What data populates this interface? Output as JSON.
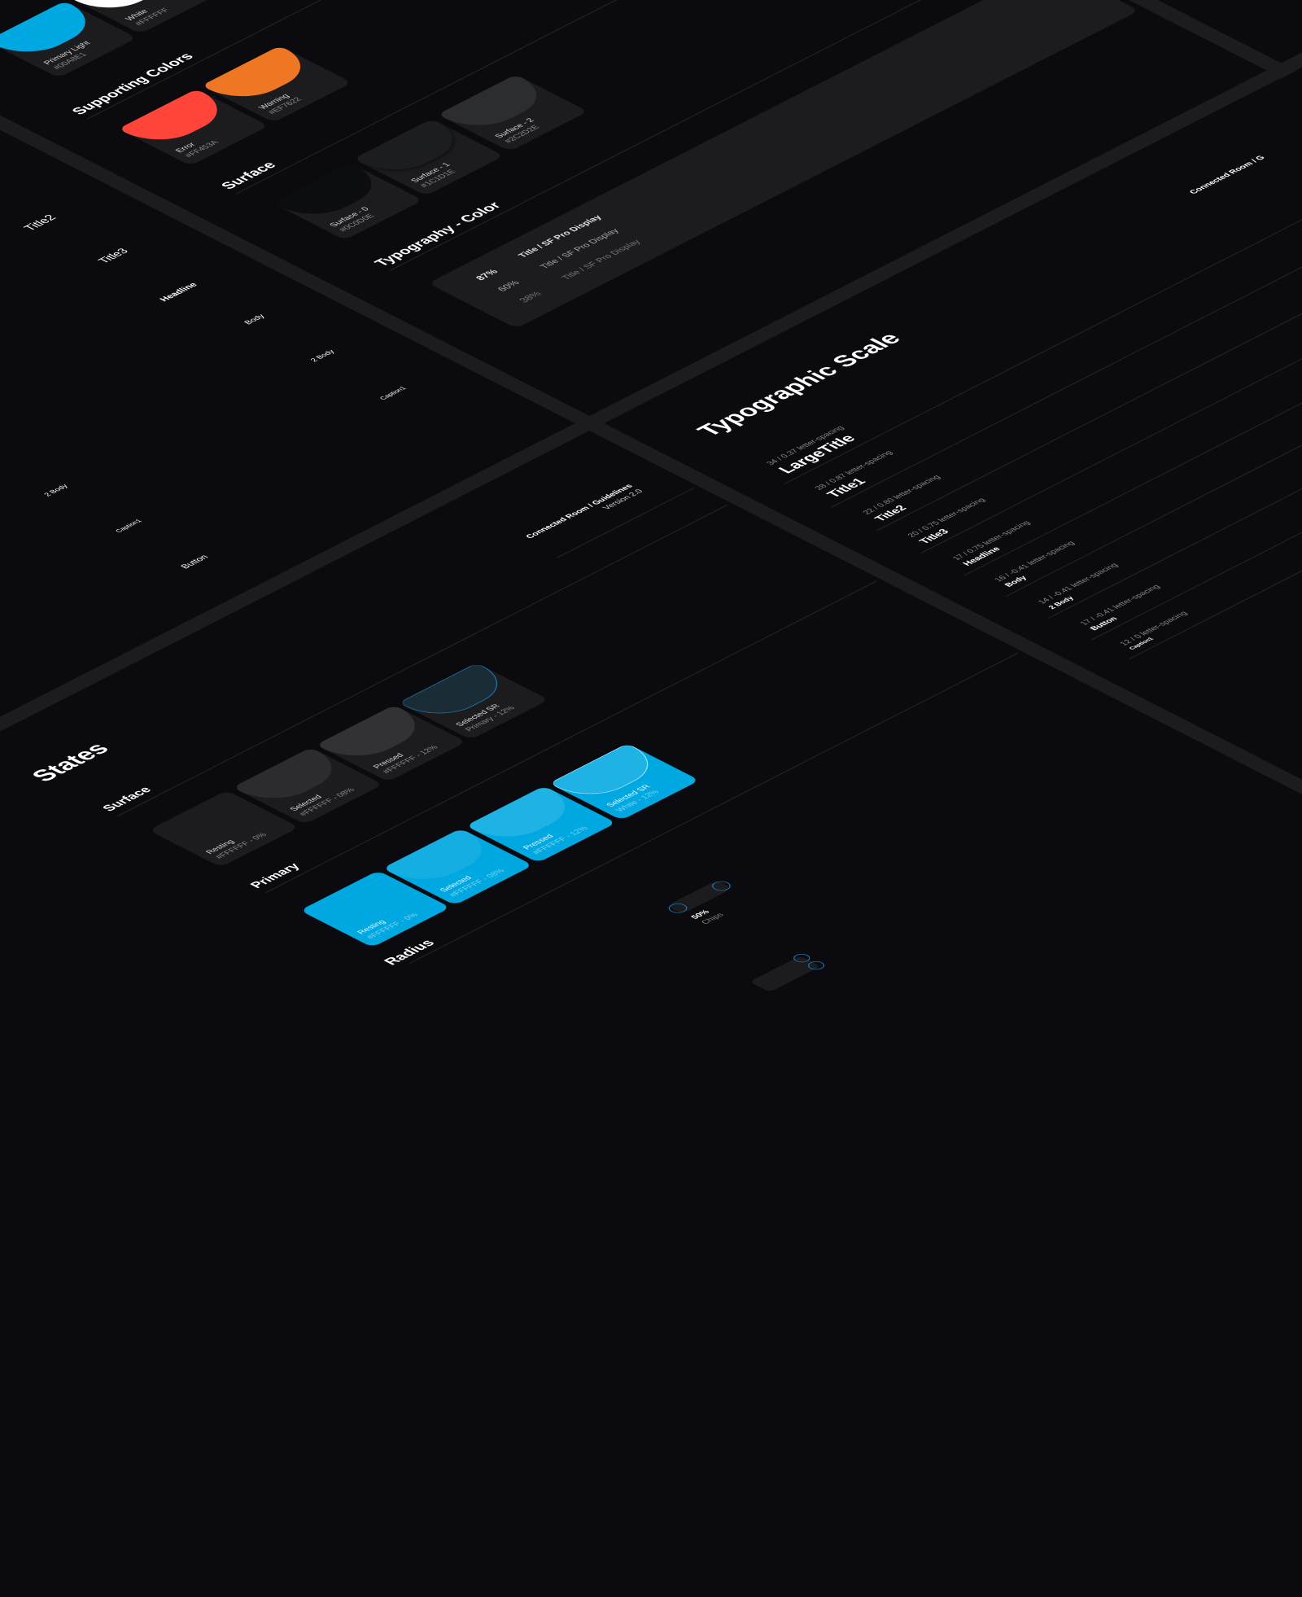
{
  "colors": {
    "background": "#0B0B0F",
    "strip": "#1C1C1E",
    "primary": "#00A8E1"
  },
  "palette_primary": [
    {
      "label": "Primary Light",
      "hex": "#00A8E1"
    },
    {
      "label": "White",
      "hex": "#FFFFFF"
    }
  ],
  "supporting": {
    "title": "Supporting Colors",
    "items": [
      {
        "label": "Error",
        "hex": "#FF453A"
      },
      {
        "label": "Warning",
        "hex": "#EF7622"
      }
    ]
  },
  "surface": {
    "title": "Surface",
    "items": [
      {
        "label": "Surface - 0",
        "hex": "#0C0D0E"
      },
      {
        "label": "Surface - 1",
        "hex": "#1C1D1E"
      },
      {
        "label": "Surface - 2",
        "hex": "#2C2D2E"
      }
    ]
  },
  "typography_color": {
    "title": "Typography - Color",
    "rows": [
      {
        "opacity": "87%",
        "sample": "Title / SF Pro Display"
      },
      {
        "opacity": "60%",
        "sample": "Title / SF Pro Display"
      },
      {
        "opacity": "38%",
        "sample": "Title / SF Pro Display"
      }
    ]
  },
  "type_list_upper": [
    "Title2",
    "Title3",
    "Headline",
    "Body",
    "2 Body",
    "Caption1"
  ],
  "type_list_lower": [
    "2 Body",
    "Caption1",
    "Button"
  ],
  "guidelines": {
    "project": "Connected Room",
    "section": "/ Guidelines",
    "version": "Version 2.0"
  },
  "guidelines_top": {
    "project": "Connected Room",
    "section": "/ G"
  },
  "typographic_scale": {
    "title": "Typographic Scale",
    "rows": [
      {
        "spec": "34 / 0.37 letter-spacing",
        "name": "LargeTitle"
      },
      {
        "spec": "28 / 0.87 letter-spacing",
        "name": "Title1"
      },
      {
        "spec": "22 / 0.80 letter-spacing",
        "name": "Title2"
      },
      {
        "spec": "20 / 0.75 letter-spacing",
        "name": "Title3"
      },
      {
        "spec": "17 / 0.75 letter-spacing",
        "name": "Headline"
      },
      {
        "spec": "16 / -0.41 letter-spacing",
        "name": "Body"
      },
      {
        "spec": "14 / -0.41 letter-spacing",
        "name": "2 Body"
      },
      {
        "spec": "17 / -0.41 letter-spacing",
        "name": "Button"
      },
      {
        "spec": "12 / 0 letter-spacing",
        "name": "Caption1"
      }
    ]
  },
  "states": {
    "title": "States",
    "surface_title": "Surface",
    "surface": [
      {
        "label": "Resting",
        "value": "#FFFFFF - 0%"
      },
      {
        "label": "Selected",
        "value": "#FFFFFF - 08%"
      },
      {
        "label": "Pressed",
        "value": "#FFFFFF - 12%"
      },
      {
        "label": "Selected SR",
        "value": "Primary - 12%"
      }
    ],
    "primary_title": "Primary",
    "primary": [
      {
        "label": "Resting",
        "value": "#FFFFFF - 0%"
      },
      {
        "label": "Selected",
        "value": "#FFFFFF - 08%"
      },
      {
        "label": "Pressed",
        "value": "#FFFFFF - 12%"
      },
      {
        "label": "Selected SR",
        "value": "White - 12%"
      }
    ]
  },
  "radius": {
    "title": "Radius",
    "chip_value": "50%",
    "chip_label": "Chips"
  }
}
